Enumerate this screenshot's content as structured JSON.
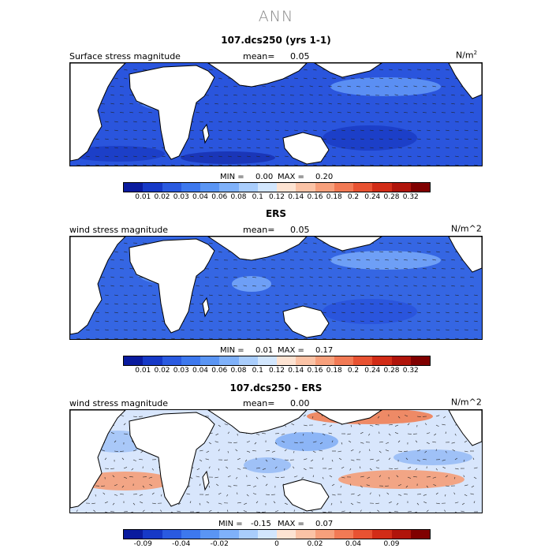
{
  "title": "ANN",
  "panels": [
    {
      "id": "model",
      "title": "107.dcs250 (yrs 1-1)",
      "left_label": "Surface stress magnitude",
      "mean_label": "mean=",
      "mean_value": "0.05",
      "units": "N/m",
      "units_sup": "2",
      "min_label": "MIN =",
      "min_value": "0.00",
      "max_label": "MAX =",
      "max_value": "0.20",
      "colorbar": {
        "colors": [
          "#0a1b9e",
          "#1639c7",
          "#2a5ae0",
          "#3d78ee",
          "#5a95f4",
          "#7fb1fa",
          "#a9cdfc",
          "#d2e6fd",
          "#fde3d2",
          "#fbc3a6",
          "#f7a07c",
          "#f27a55",
          "#e85232",
          "#d22c17",
          "#b0140b",
          "#800000"
        ],
        "labels": [
          "0.01",
          "0.02",
          "0.03",
          "0.04",
          "0.06",
          "0.08",
          "0.1",
          "0.12",
          "0.14",
          "0.16",
          "0.18",
          "0.2",
          "0.24",
          "0.28",
          "0.32"
        ]
      }
    },
    {
      "id": "obs",
      "title": "ERS",
      "left_label": "wind stress magnitude",
      "mean_label": "mean=",
      "mean_value": "0.05",
      "units": "N/m^2",
      "units_sup": "",
      "min_label": "MIN =",
      "min_value": "0.01",
      "max_label": "MAX =",
      "max_value": "0.17",
      "colorbar": {
        "colors": [
          "#0a1b9e",
          "#1639c7",
          "#2a5ae0",
          "#3d78ee",
          "#5a95f4",
          "#7fb1fa",
          "#a9cdfc",
          "#d2e6fd",
          "#fde3d2",
          "#fbc3a6",
          "#f7a07c",
          "#f27a55",
          "#e85232",
          "#d22c17",
          "#b0140b",
          "#800000"
        ],
        "labels": [
          "0.01",
          "0.02",
          "0.03",
          "0.04",
          "0.06",
          "0.08",
          "0.1",
          "0.12",
          "0.14",
          "0.16",
          "0.18",
          "0.2",
          "0.24",
          "0.28",
          "0.32"
        ]
      }
    },
    {
      "id": "diff",
      "title": "107.dcs250 - ERS",
      "left_label": "wind stress magnitude",
      "mean_label": "mean=",
      "mean_value": "0.00",
      "units": "N/m^2",
      "units_sup": "",
      "min_label": "MIN =",
      "min_value": "-0.15",
      "max_label": "MAX =",
      "max_value": "0.07",
      "colorbar": {
        "colors": [
          "#0a1b9e",
          "#1639c7",
          "#2a5ae0",
          "#3d78ee",
          "#5a95f4",
          "#7fb1fa",
          "#a9cdfc",
          "#d2e6fd",
          "#fde3d2",
          "#fbc3a6",
          "#f7a07c",
          "#f27a55",
          "#e85232",
          "#d22c17",
          "#b0140b",
          "#800000"
        ],
        "labels": [
          "-0.09",
          "",
          "-0.04",
          "",
          "-0.02",
          "",
          "",
          "0",
          "",
          "0.02",
          "",
          "0.04",
          "",
          "0.09",
          ""
        ]
      }
    }
  ]
}
